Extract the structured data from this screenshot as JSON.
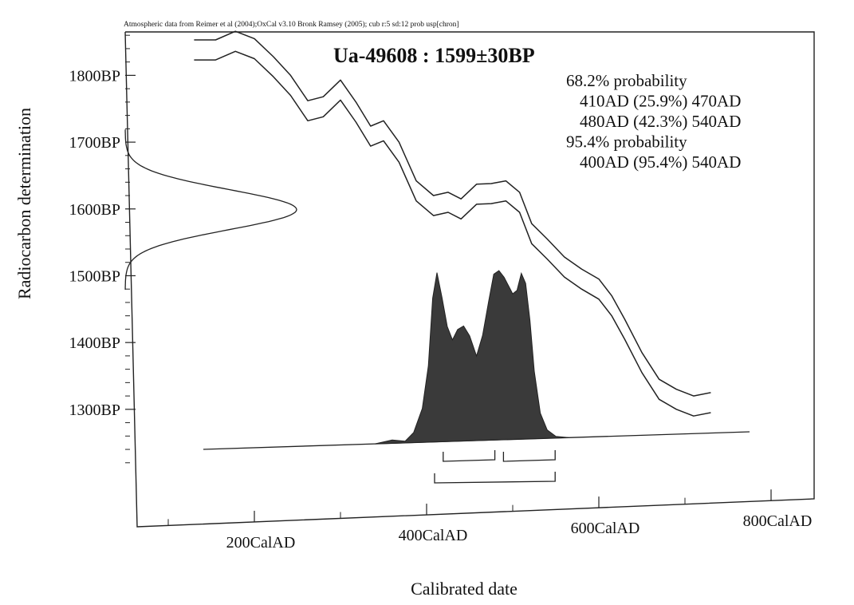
{
  "chart_data": {
    "type": "area",
    "header_note": "Atmospheric data from Reimer et al (2004);OxCal v3.10 Bronk Ramsey (2005); cub r:5 sd:12 prob usp[chron]",
    "title": "Ua-49608 : 1599±30BP",
    "xlabel": "Calibrated date",
    "ylabel": "Radiocarbon determination",
    "x_unit": "CalAD",
    "y_unit": "BP",
    "xlim": [
      50,
      850
    ],
    "ylim": [
      1160,
      1865
    ],
    "x_ticks": [
      {
        "value": 200,
        "label": "200CalAD"
      },
      {
        "value": 400,
        "label": "400CalAD"
      },
      {
        "value": 600,
        "label": "600CalAD"
      },
      {
        "value": 800,
        "label": "800CalAD"
      }
    ],
    "y_ticks": [
      {
        "value": 1800,
        "label": "1800BP"
      },
      {
        "value": 1700,
        "label": "1700BP"
      },
      {
        "value": 1600,
        "label": "1600BP"
      },
      {
        "value": 1500,
        "label": "1500BP"
      },
      {
        "value": 1400,
        "label": "1400BP"
      },
      {
        "value": 1300,
        "label": "1300BP"
      }
    ],
    "legend": [
      {
        "text": "68.2% probability",
        "indent": false
      },
      {
        "text": "410AD (25.9%) 470AD",
        "indent": true
      },
      {
        "text": "480AD (42.3%) 540AD",
        "indent": true
      },
      {
        "text": "95.4% probability",
        "indent": false
      },
      {
        "text": "400AD (95.4%) 540AD",
        "indent": true
      }
    ],
    "measurement": {
      "mean_bp": 1599,
      "sd_bp": 30
    },
    "calibration_curve_upper": {
      "x": [
        130,
        155,
        178,
        200,
        222,
        242,
        262,
        280,
        300,
        318,
        335,
        350,
        368,
        388,
        408,
        425,
        440,
        458,
        475,
        492,
        508,
        522,
        540,
        560,
        580,
        600,
        615,
        630,
        650,
        670,
        690,
        710,
        730
      ],
      "y": [
        1853,
        1853,
        1866,
        1855,
        1828,
        1800,
        1762,
        1768,
        1793,
        1760,
        1724,
        1732,
        1700,
        1642,
        1620,
        1625,
        1615,
        1637,
        1638,
        1642,
        1625,
        1578,
        1555,
        1528,
        1510,
        1495,
        1470,
        1435,
        1385,
        1345,
        1330,
        1320,
        1325
      ]
    },
    "calibration_curve_lower": {
      "x": [
        130,
        155,
        178,
        200,
        222,
        242,
        262,
        280,
        300,
        318,
        335,
        350,
        368,
        388,
        408,
        425,
        440,
        458,
        475,
        492,
        508,
        522,
        540,
        560,
        580,
        600,
        615,
        630,
        650,
        670,
        690,
        710,
        730
      ],
      "y": [
        1823,
        1823,
        1836,
        1825,
        1798,
        1770,
        1732,
        1738,
        1763,
        1730,
        1694,
        1702,
        1670,
        1612,
        1590,
        1595,
        1585,
        1607,
        1608,
        1612,
        1595,
        1548,
        1525,
        1498,
        1480,
        1465,
        1440,
        1405,
        1355,
        1315,
        1300,
        1290,
        1295
      ]
    },
    "posterior_distribution": {
      "x": [
        340,
        360,
        375,
        385,
        395,
        402,
        407,
        412,
        418,
        424,
        430,
        436,
        443,
        450,
        458,
        465,
        472,
        478,
        484,
        490,
        496,
        500,
        505,
        510,
        515,
        520,
        525,
        532,
        540,
        550,
        565
      ],
      "density": [
        0.0,
        0.02,
        0.01,
        0.06,
        0.2,
        0.45,
        0.85,
        1.0,
        0.85,
        0.68,
        0.6,
        0.66,
        0.68,
        0.62,
        0.5,
        0.62,
        0.82,
        0.98,
        1.0,
        0.96,
        0.9,
        0.86,
        0.88,
        0.98,
        0.92,
        0.7,
        0.4,
        0.15,
        0.05,
        0.01,
        0.0
      ]
    },
    "ranges_68": [
      [
        410,
        470
      ],
      [
        480,
        540
      ]
    ],
    "ranges_95": [
      [
        400,
        540
      ]
    ]
  }
}
